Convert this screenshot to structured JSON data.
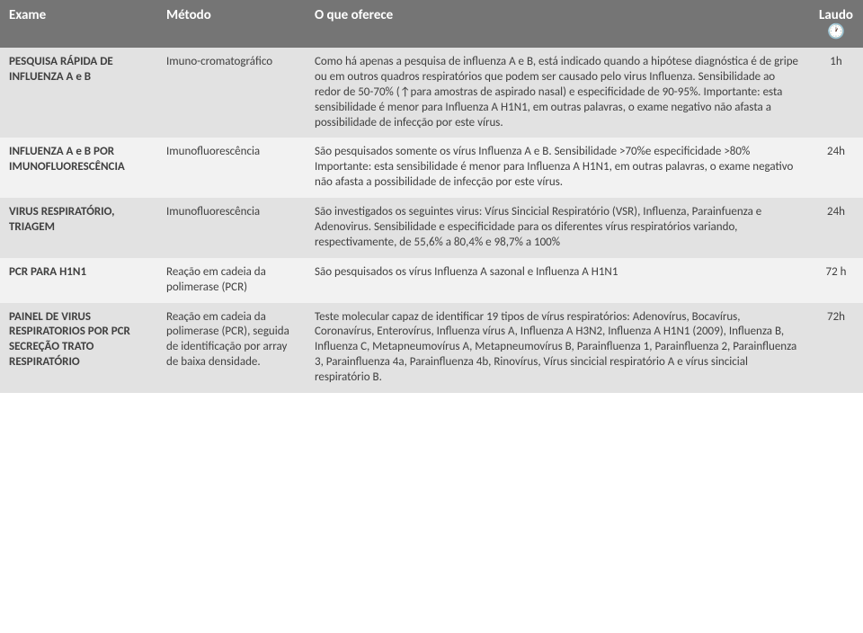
{
  "headers": {
    "exame": "Exame",
    "metodo": "Método",
    "oferece": "O que oferece",
    "laudo": "Laudo"
  },
  "rows": [
    {
      "exame": "PESQUISA RÁPIDA DE INFLUENZA A e B",
      "metodo": "Imuno-cromatográfico",
      "oferece": "Como há apenas a pesquisa de influenza A e B, está indicado quando a hipótese diagnóstica é de gripe ou em outros quadros respiratórios que podem ser causado pelo virus Influenza. Sensibilidade ao redor de 50-70% (↑para amostras de aspirado nasal) e especificidade de 90-95%. Importante: esta sensibilidade é menor para Influenza A H1N1, em outras palavras, o exame negativo não afasta a possibilidade de infecção por este vírus.",
      "laudo": "1h"
    },
    {
      "exame": "INFLUENZA A e B POR IMUNOFLUORESCÊNCIA",
      "metodo": "Imunofluorescência",
      "oferece": "São pesquisados somente os vírus Influenza A e B. Sensibilidade >70%e especificidade >80% Importante: esta sensibilidade é menor para Influenza A H1N1, em outras palavras, o exame negativo não afasta a possibilidade de infecção por este vírus.",
      "laudo": "24h"
    },
    {
      "exame": "VIRUS RESPIRATÓRIO, TRIAGEM",
      "metodo": "Imunofluorescência",
      "oferece": "São investigados os seguintes virus: Vírus Sincicial Respiratório (VSR), Influenza, Parainfuenza e Adenovirus. Sensibilidade e especificidade para os diferentes vírus respiratórios variando, respectivamente, de 55,6% a 80,4% e 98,7% a 100%",
      "laudo": "24h"
    },
    {
      "exame": "PCR PARA H1N1",
      "metodo": "Reação em cadeia da polimerase (PCR)",
      "oferece": "São pesquisados os vírus Influenza A sazonal e Influenza A H1N1",
      "laudo": "72 h"
    },
    {
      "exame": "PAINEL DE VIRUS RESPIRATORIOS POR PCR SECREÇÃO TRATO RESPIRATÓRIO",
      "metodo": "Reação em cadeia da polimerase (PCR), seguida de identificação por array de baixa densidade.",
      "oferece": "Teste molecular capaz de identificar 19 tipos de vírus respiratórios: Adenovírus, Bocavírus, Coronavírus, Enterovírus, Influenza vírus A, Influenza A H3N2, Influenza A H1N1 (2009), Influenza B, Influenza C, Metapneumovírus A, Metapneumovírus B, Parainfluenza 1, Parainfluenza 2, Parainfluenza 3, Parainfluenza 4a, Parainfluenza 4b, Rinovírus, Vírus sincicial respiratório A e vírus sincicial respiratório B.",
      "laudo": "72h"
    }
  ]
}
